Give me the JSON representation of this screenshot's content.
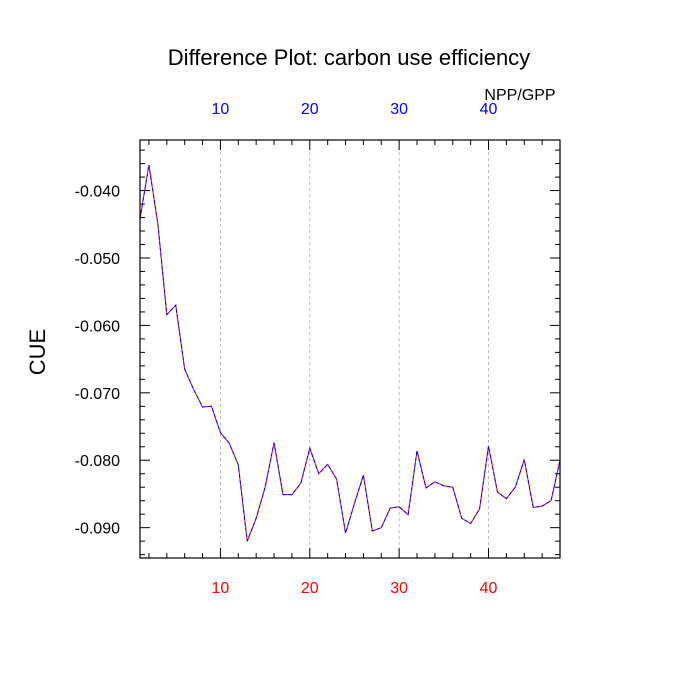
{
  "chart_data": {
    "type": "line",
    "title": "Difference Plot: carbon use efficiency",
    "ylabel": "CUE",
    "top_axis_label": "NPP/GPP",
    "xlim": [
      1,
      48
    ],
    "ylim": [
      -0.0945,
      -0.0325
    ],
    "x_ticks": [
      10,
      20,
      30,
      40
    ],
    "x_tick_labels": [
      "10",
      "20",
      "30",
      "40"
    ],
    "y_ticks": [
      -0.04,
      -0.05,
      -0.06,
      -0.07,
      -0.08,
      -0.09
    ],
    "y_tick_labels": [
      "-0.040",
      "-0.050",
      "-0.060",
      "-0.070",
      "-0.080",
      "-0.090"
    ],
    "grid": "vertical dashed at major x ticks",
    "colors": {
      "bottom_tick_labels": "#ff0000",
      "top_tick_labels": "#0000ff",
      "line_dash": "#0000ff",
      "line_base": "#ff0000",
      "grid": "#aaaaaa",
      "frame": "#000000"
    },
    "x": [
      1,
      2,
      3,
      4,
      5,
      6,
      7,
      8,
      9,
      10,
      11,
      12,
      13,
      14,
      15,
      16,
      17,
      18,
      19,
      20,
      21,
      22,
      23,
      24,
      25,
      26,
      27,
      28,
      29,
      30,
      31,
      32,
      33,
      34,
      35,
      36,
      37,
      38,
      39,
      40,
      41,
      42,
      43,
      44,
      45,
      46,
      47,
      48
    ],
    "series": [
      {
        "values": [
          -0.0442,
          -0.0362,
          -0.045,
          -0.0584,
          -0.057,
          -0.0665,
          -0.0695,
          -0.0721,
          -0.072,
          -0.0759,
          -0.0775,
          -0.0807,
          -0.092,
          -0.0886,
          -0.084,
          -0.0774,
          -0.0851,
          -0.0851,
          -0.0834,
          -0.0782,
          -0.082,
          -0.0806,
          -0.0828,
          -0.0908,
          -0.0864,
          -0.0822,
          -0.0905,
          -0.09,
          -0.0871,
          -0.0869,
          -0.0881,
          -0.0786,
          -0.0841,
          -0.0832,
          -0.0838,
          -0.084,
          -0.0886,
          -0.0894,
          -0.0872,
          -0.0779,
          -0.0847,
          -0.0857,
          -0.084,
          -0.0799,
          -0.087,
          -0.0868,
          -0.086,
          -0.08
        ]
      }
    ]
  }
}
